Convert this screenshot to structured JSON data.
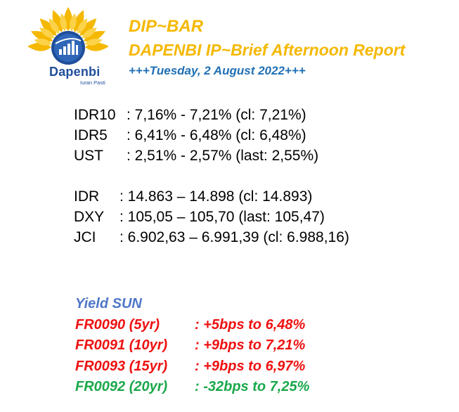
{
  "header": {
    "logo_name": "Dapenbi",
    "logo_tagline": "Iuran Pasti",
    "title": "DIP~BAR",
    "subtitle": "DAPENBI IP~Brief Afternoon Report",
    "date": "+++Tuesday, 2 August 2022+++"
  },
  "rates": [
    {
      "label": "IDR10",
      "value": ": 7,16% - 7,21% (cl: 7,21%)"
    },
    {
      "label": "IDR5",
      "value": ": 6,41% - 6,48% (cl: 6,48%)"
    },
    {
      "label": "UST",
      "value": ": 2,51% - 2,57% (last: 2,55%)"
    }
  ],
  "markets": [
    {
      "label": "IDR",
      "value": ": 14.863 – 14.898 (cl: 14.893)"
    },
    {
      "label": "DXY",
      "value": ": 105,05 – 105,70 (last: 105,47)"
    },
    {
      "label": "JCI",
      "value": ": 6.902,63 – 6.991,39 (cl: 6.988,16)"
    }
  ],
  "yield_sun": {
    "heading": "Yield SUN",
    "items": [
      {
        "name": "FR0090 (5yr)",
        "change": ": +5bps to 6,48%",
        "color": "#ee1111"
      },
      {
        "name": "FR0091 (10yr)",
        "change": ": +9bps to 7,21%",
        "color": "#ee1111"
      },
      {
        "name": "FR0093 (15yr)",
        "change": ": +9bps to 6,97%",
        "color": "#ee1111"
      },
      {
        "name": "FR0092 (20yr)",
        "change": ": -32bps to 7,25%",
        "color": "#1aa84a"
      }
    ]
  },
  "colors": {
    "title": "#f5b800",
    "date": "#1f6fb5",
    "logo_blue": "#1f4e9a",
    "heading": "#4f77c6",
    "up": "#ee1111",
    "down": "#1aa84a"
  }
}
